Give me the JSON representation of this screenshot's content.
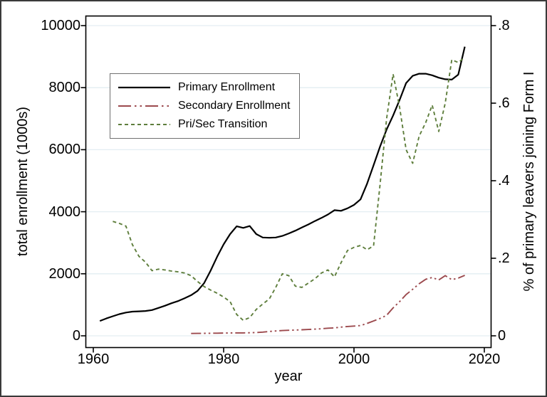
{
  "figure": {
    "background": "#ffffff",
    "border_color": "#3a3a3a",
    "gridline_color": "#e3eef2",
    "axis_color": "#000000"
  },
  "chart_data": {
    "type": "line",
    "title": "",
    "xlabel": "year",
    "ylabel_left": "total enrollment (1000s)",
    "ylabel_right": "% of primary leavers joining Form I",
    "grid": "horizontal gridlines at left-axis ticks only",
    "legend_position": "upper-left inside plot",
    "x_tick_labels": [
      "1960",
      "1980",
      "2000",
      "2020"
    ],
    "x_tick_values": [
      1960,
      1980,
      2000,
      2020
    ],
    "y_left_tick_labels": [
      "0",
      "2000",
      "4000",
      "6000",
      "8000",
      "10000"
    ],
    "y_left_tick_values": [
      0,
      2000,
      4000,
      6000,
      8000,
      10000
    ],
    "y_right_tick_labels": [
      "0",
      ".2",
      ".4",
      ".6",
      ".8"
    ],
    "y_right_tick_values": [
      0,
      0.2,
      0.4,
      0.6,
      0.8
    ],
    "xlim": [
      1958.8,
      2021
    ],
    "ylim_left": [
      0,
      10000
    ],
    "ylim_right": [
      0,
      0.8
    ],
    "series": [
      {
        "name": "Primary Enrollment",
        "axis": "left",
        "color": "#000000",
        "dash": "solid",
        "points": [
          [
            1961,
            480
          ],
          [
            1962,
            560
          ],
          [
            1963,
            630
          ],
          [
            1964,
            700
          ],
          [
            1965,
            750
          ],
          [
            1966,
            780
          ],
          [
            1967,
            790
          ],
          [
            1968,
            800
          ],
          [
            1969,
            830
          ],
          [
            1970,
            900
          ],
          [
            1971,
            970
          ],
          [
            1972,
            1050
          ],
          [
            1973,
            1120
          ],
          [
            1974,
            1210
          ],
          [
            1975,
            1310
          ],
          [
            1976,
            1450
          ],
          [
            1977,
            1700
          ],
          [
            1978,
            2100
          ],
          [
            1979,
            2550
          ],
          [
            1980,
            2950
          ],
          [
            1981,
            3280
          ],
          [
            1982,
            3530
          ],
          [
            1983,
            3480
          ],
          [
            1984,
            3540
          ],
          [
            1985,
            3280
          ],
          [
            1986,
            3170
          ],
          [
            1987,
            3160
          ],
          [
            1988,
            3170
          ],
          [
            1989,
            3220
          ],
          [
            1990,
            3300
          ],
          [
            1991,
            3390
          ],
          [
            1992,
            3490
          ],
          [
            1993,
            3590
          ],
          [
            1994,
            3700
          ],
          [
            1995,
            3800
          ],
          [
            1996,
            3910
          ],
          [
            1997,
            4050
          ],
          [
            1998,
            4030
          ],
          [
            1999,
            4110
          ],
          [
            2000,
            4220
          ],
          [
            2001,
            4400
          ],
          [
            2002,
            4900
          ],
          [
            2003,
            5500
          ],
          [
            2004,
            6100
          ],
          [
            2005,
            6650
          ],
          [
            2006,
            7100
          ],
          [
            2007,
            7600
          ],
          [
            2008,
            8150
          ],
          [
            2009,
            8380
          ],
          [
            2010,
            8450
          ],
          [
            2011,
            8450
          ],
          [
            2012,
            8400
          ],
          [
            2013,
            8320
          ],
          [
            2014,
            8270
          ],
          [
            2015,
            8260
          ],
          [
            2016,
            8420
          ],
          [
            2017,
            9320
          ]
        ]
      },
      {
        "name": "Secondary Enrollment",
        "axis": "left",
        "color": "#9c4a4e",
        "dash": "dash-dot-dot",
        "points": [
          [
            1975,
            75
          ],
          [
            1976,
            78
          ],
          [
            1977,
            80
          ],
          [
            1978,
            82
          ],
          [
            1979,
            85
          ],
          [
            1980,
            90
          ],
          [
            1981,
            92
          ],
          [
            1982,
            95
          ],
          [
            1983,
            95
          ],
          [
            1984,
            98
          ],
          [
            1985,
            105
          ],
          [
            1986,
            120
          ],
          [
            1987,
            140
          ],
          [
            1988,
            155
          ],
          [
            1989,
            170
          ],
          [
            1990,
            178
          ],
          [
            1991,
            185
          ],
          [
            1992,
            195
          ],
          [
            1993,
            205
          ],
          [
            1994,
            215
          ],
          [
            1995,
            228
          ],
          [
            1996,
            245
          ],
          [
            1997,
            255
          ],
          [
            1998,
            280
          ],
          [
            1999,
            300
          ],
          [
            2000,
            315
          ],
          [
            2001,
            330
          ],
          [
            2002,
            400
          ],
          [
            2003,
            480
          ],
          [
            2004,
            560
          ],
          [
            2005,
            660
          ],
          [
            2006,
            900
          ],
          [
            2007,
            1100
          ],
          [
            2008,
            1330
          ],
          [
            2009,
            1500
          ],
          [
            2010,
            1680
          ],
          [
            2011,
            1820
          ],
          [
            2012,
            1880
          ],
          [
            2013,
            1800
          ],
          [
            2014,
            1940
          ],
          [
            2015,
            1810
          ],
          [
            2016,
            1860
          ],
          [
            2017,
            1950
          ]
        ]
      },
      {
        "name": "Pri/Sec Transition",
        "axis": "right",
        "color": "#5e7e3c",
        "dash": "short-dash",
        "points": [
          [
            1963,
            0.295
          ],
          [
            1964,
            0.29
          ],
          [
            1965,
            0.283
          ],
          [
            1966,
            0.235
          ],
          [
            1967,
            0.205
          ],
          [
            1968,
            0.19
          ],
          [
            1969,
            0.168
          ],
          [
            1970,
            0.172
          ],
          [
            1971,
            0.17
          ],
          [
            1972,
            0.167
          ],
          [
            1973,
            0.165
          ],
          [
            1974,
            0.162
          ],
          [
            1975,
            0.155
          ],
          [
            1976,
            0.14
          ],
          [
            1977,
            0.127
          ],
          [
            1978,
            0.118
          ],
          [
            1979,
            0.11
          ],
          [
            1980,
            0.1
          ],
          [
            1981,
            0.088
          ],
          [
            1982,
            0.055
          ],
          [
            1983,
            0.04
          ],
          [
            1984,
            0.047
          ],
          [
            1985,
            0.068
          ],
          [
            1986,
            0.082
          ],
          [
            1987,
            0.095
          ],
          [
            1988,
            0.125
          ],
          [
            1989,
            0.16
          ],
          [
            1990,
            0.155
          ],
          [
            1991,
            0.128
          ],
          [
            1992,
            0.125
          ],
          [
            1993,
            0.136
          ],
          [
            1994,
            0.147
          ],
          [
            1995,
            0.162
          ],
          [
            1996,
            0.17
          ],
          [
            1997,
            0.152
          ],
          [
            1998,
            0.188
          ],
          [
            1999,
            0.22
          ],
          [
            2000,
            0.228
          ],
          [
            2001,
            0.233
          ],
          [
            2002,
            0.222
          ],
          [
            2003,
            0.232
          ],
          [
            2004,
            0.39
          ],
          [
            2005,
            0.56
          ],
          [
            2006,
            0.675
          ],
          [
            2007,
            0.59
          ],
          [
            2008,
            0.48
          ],
          [
            2009,
            0.445
          ],
          [
            2010,
            0.515
          ],
          [
            2011,
            0.55
          ],
          [
            2012,
            0.595
          ],
          [
            2013,
            0.527
          ],
          [
            2014,
            0.6
          ],
          [
            2015,
            0.712
          ],
          [
            2016,
            0.705
          ],
          [
            2017,
            0.718
          ]
        ]
      }
    ]
  }
}
